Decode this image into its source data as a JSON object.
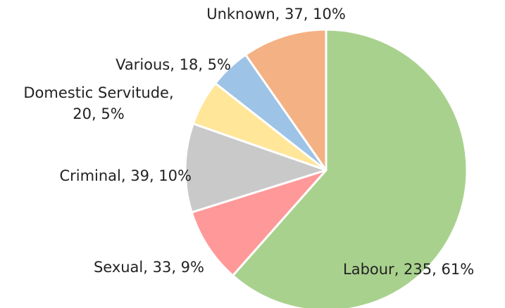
{
  "chart_data": {
    "type": "pie",
    "values": [
      235,
      33,
      39,
      20,
      18,
      37
    ],
    "value_labels": [
      "Labour, 235, 61%",
      "Sexual, 33, 9%",
      "Criminal, 39, 10%",
      "Domestic Servitude,\n20, 5%",
      "Various, 18, 5%",
      "Unknown, 37, 10%"
    ],
    "colors": [
      "#a9d18e",
      "#ff9999",
      "#c9c9c9",
      "#ffe699",
      "#9dc3e6",
      "#f4b183"
    ]
  }
}
